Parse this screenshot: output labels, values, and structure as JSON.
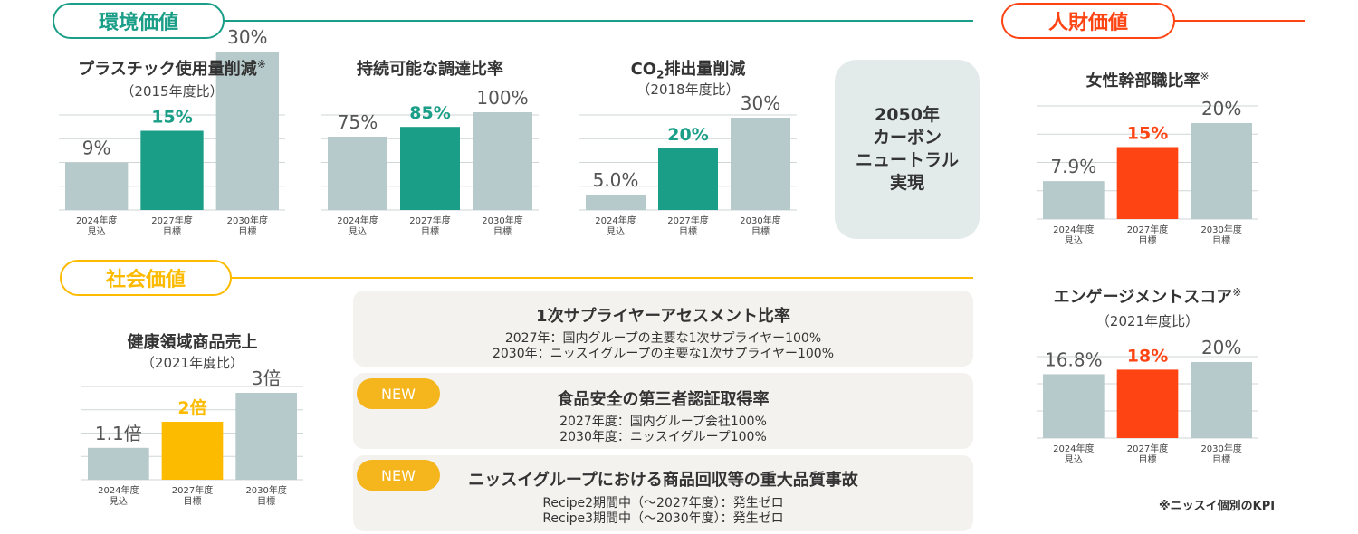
{
  "sections": {
    "environment": "環境価値",
    "human": "人財価値",
    "social": "社会価値"
  },
  "colors": {
    "env_green": "#1a9e87",
    "human_red": "#ff4414",
    "social_yellow": "#fdbb00",
    "gray_bar": "#b6c9cb",
    "grid": "#cfd6d6"
  },
  "chart_data": [
    {
      "id": "plastic",
      "type": "bar",
      "title": "プラスチック使用量削減",
      "title_note": "※",
      "subtitle": "（2015年度比）",
      "categories": [
        [
          "2024年度",
          "見込"
        ],
        [
          "2027年度",
          "目標"
        ],
        [
          "2030年度",
          "目標"
        ]
      ],
      "values": [
        9,
        15,
        30
      ],
      "labels": [
        "9%",
        "15%",
        "30%"
      ],
      "highlight": 1,
      "color_key": "env_green",
      "ylim": [
        0,
        40
      ]
    },
    {
      "id": "sustainable",
      "type": "bar",
      "title": "持続可能な調達比率",
      "subtitle": "",
      "categories": [
        [
          "2024年度",
          "見込"
        ],
        [
          "2027年度",
          "目標"
        ],
        [
          "2030年度",
          "目標"
        ]
      ],
      "values": [
        75,
        85,
        100
      ],
      "labels": [
        "75%",
        "85%",
        "100%"
      ],
      "highlight": 1,
      "color_key": "env_green",
      "ylim": [
        0,
        100
      ]
    },
    {
      "id": "co2",
      "type": "bar",
      "title_pre": "CO",
      "title_sub": "2",
      "title_post": "排出量削減",
      "subtitle": "（2018年度比）",
      "categories": [
        [
          "2024年度",
          "見込"
        ],
        [
          "2027年度",
          "目標"
        ],
        [
          "2030年度",
          "目標"
        ]
      ],
      "values": [
        5.0,
        20,
        30
      ],
      "labels": [
        "5.0%",
        "20%",
        "30%"
      ],
      "highlight": 1,
      "color_key": "env_green",
      "ylim": [
        0,
        35
      ]
    },
    {
      "id": "women",
      "type": "bar",
      "title": "女性幹部職比率",
      "title_note": "※",
      "subtitle": "",
      "categories": [
        [
          "2024年度",
          "見込"
        ],
        [
          "2027年度",
          "目標"
        ],
        [
          "2030年度",
          "目標"
        ]
      ],
      "values": [
        7.9,
        15,
        20
      ],
      "labels": [
        "7.9%",
        "15%",
        "20%"
      ],
      "highlight": 1,
      "color_key": "human_red",
      "ylim": [
        0,
        25
      ]
    },
    {
      "id": "engagement",
      "type": "bar",
      "title": "エンゲージメントスコア",
      "title_note": "※",
      "subtitle": "（2021年度比）",
      "categories": [
        [
          "2024年度",
          "見込"
        ],
        [
          "2027年度",
          "目標"
        ],
        [
          "2030年度",
          "目標"
        ]
      ],
      "values": [
        16.8,
        18,
        20
      ],
      "labels": [
        "16.8%",
        "18%",
        "20%"
      ],
      "highlight": 1,
      "color_key": "human_red",
      "ylim": [
        0,
        22
      ]
    },
    {
      "id": "health",
      "type": "bar",
      "title": "健康領域商品売上",
      "subtitle": "（2021年度比）",
      "categories": [
        [
          "2024年度",
          "見込"
        ],
        [
          "2027年度",
          "目標"
        ],
        [
          "2030年度",
          "目標"
        ]
      ],
      "values": [
        1.1,
        2,
        3
      ],
      "labels": [
        "1.1倍",
        "2倍",
        "3倍"
      ],
      "highlight": 1,
      "color_key": "social_yellow",
      "ylim": [
        0,
        3.6
      ]
    }
  ],
  "carbon": [
    "2050年",
    "カーボン",
    "ニュートラル",
    "実現"
  ],
  "panels": [
    {
      "title": "1次サプライヤーアセスメント比率",
      "badge": "",
      "lines": [
        "2027年：国内グループの主要な1次サプライヤー100%",
        "2030年：ニッスイグループの主要な1次サプライヤー100%"
      ]
    },
    {
      "title": "食品安全の第三者認証取得率",
      "badge": "NEW",
      "lines": [
        "2027年度：国内グループ会社100%",
        "2030年度：ニッスイグループ100%"
      ]
    },
    {
      "title": "ニッスイグループにおける商品回収等の重大品質事故",
      "badge": "NEW",
      "lines": [
        "Recipe2期間中（～2027年度）：発生ゼロ",
        "Recipe3期間中（～2030年度）：発生ゼロ"
      ]
    }
  ],
  "footnote": "※ニッスイ個別のKPI"
}
